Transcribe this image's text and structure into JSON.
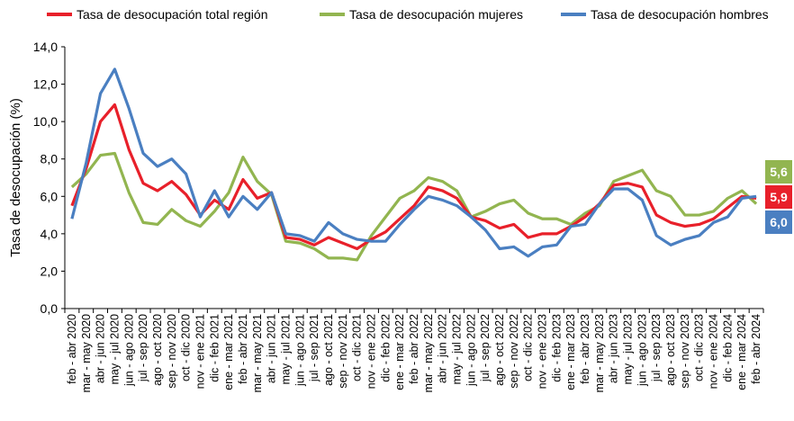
{
  "chart_data": {
    "type": "line",
    "y_label": "Tasa de desocupación (%)",
    "categories": [
      "feb - abr 2020",
      "mar - may 2020",
      "abr - jun 2020",
      "may - jul 2020",
      "jun - ago 2020",
      "jul - sep 2020",
      "ago - oct 2020",
      "sep - nov 2020",
      "oct - dic 2020",
      "nov - ene 2021",
      "dic - feb 2021",
      "ene - mar 2021",
      "feb - abr 2021",
      "mar - may 2021",
      "abr - jun 2021",
      "may - jul 2021",
      "jun - ago 2021",
      "jul - sep 2021",
      "ago - oct 2021",
      "sep - nov 2021",
      "oct - dic 2021",
      "nov - ene 2022",
      "dic - feb 2022",
      "ene - mar 2022",
      "feb - abr 2022",
      "mar - may 2022",
      "abr - jun 2022",
      "may - jul 2022",
      "jun - ago 2022",
      "jul - sep 2022",
      "ago - oct 2022",
      "sep - nov 2022",
      "oct - dic 2022",
      "nov - ene 2023",
      "dic - feb 2023",
      "ene - mar 2023",
      "feb - abr 2023",
      "mar - may 2023",
      "abr - jun 2023",
      "may - jul 2023",
      "jun - ago 2023",
      "jul - sep 2023",
      "ago - oct 2023",
      "sep - nov 2023",
      "oct - dic 2023",
      "nov - ene 2024",
      "dic - feb 2024",
      "ene - mar 2024",
      "feb - abr 2024"
    ],
    "series": [
      {
        "name": "Tasa de desocupación total región",
        "color": "#e8202a",
        "values": [
          5.5,
          7.5,
          10.0,
          10.9,
          8.5,
          6.7,
          6.3,
          6.8,
          6.1,
          5.0,
          5.8,
          5.3,
          6.9,
          5.9,
          6.2,
          3.8,
          3.7,
          3.4,
          3.8,
          3.5,
          3.2,
          3.7,
          4.1,
          4.8,
          5.5,
          6.5,
          6.3,
          5.9,
          4.9,
          4.7,
          4.3,
          4.5,
          3.8,
          4.0,
          4.0,
          4.4,
          4.9,
          5.6,
          6.6,
          6.7,
          6.5,
          5.0,
          4.6,
          4.4,
          4.5,
          4.8,
          5.4,
          6.0,
          5.9
        ],
        "value_labels": [
          null,
          null,
          null,
          null,
          null,
          null,
          null,
          null,
          null,
          null,
          null,
          null,
          null,
          null,
          null,
          null,
          null,
          null,
          null,
          null,
          null,
          null,
          null,
          null,
          null,
          null,
          null,
          null,
          null,
          null,
          null,
          null,
          null,
          null,
          null,
          null,
          null,
          null,
          null,
          null,
          null,
          null,
          null,
          null,
          null,
          null,
          null,
          null,
          "5,9"
        ]
      },
      {
        "name": "Tasa de desocupación mujeres",
        "color": "#92b550",
        "values": [
          6.5,
          7.2,
          8.2,
          8.3,
          6.2,
          4.6,
          4.5,
          5.3,
          4.7,
          4.4,
          5.2,
          6.2,
          8.1,
          6.8,
          6.1,
          3.6,
          3.5,
          3.2,
          2.7,
          2.7,
          2.6,
          3.9,
          4.9,
          5.9,
          6.3,
          7.0,
          6.8,
          6.3,
          4.9,
          5.2,
          5.6,
          5.8,
          5.1,
          4.8,
          4.8,
          4.5,
          5.1,
          5.5,
          6.8,
          7.1,
          7.4,
          6.3,
          6.0,
          5.0,
          5.0,
          5.2,
          5.9,
          6.3,
          5.6
        ],
        "value_labels": [
          null,
          null,
          null,
          null,
          null,
          null,
          null,
          null,
          null,
          null,
          null,
          null,
          null,
          null,
          null,
          null,
          null,
          null,
          null,
          null,
          null,
          null,
          null,
          null,
          null,
          null,
          null,
          null,
          null,
          null,
          null,
          null,
          null,
          null,
          null,
          null,
          null,
          null,
          null,
          null,
          null,
          null,
          null,
          null,
          null,
          null,
          null,
          null,
          "5,6"
        ]
      },
      {
        "name": "Tasa de desocupación hombres",
        "color": "#4a7fc1",
        "values": [
          4.8,
          7.8,
          11.5,
          12.8,
          10.7,
          8.3,
          7.6,
          8.0,
          7.2,
          4.9,
          6.3,
          4.9,
          6.0,
          5.3,
          6.2,
          4.0,
          3.9,
          3.6,
          4.6,
          4.0,
          3.7,
          3.6,
          3.6,
          4.5,
          5.3,
          6.0,
          5.8,
          5.5,
          4.9,
          4.2,
          3.2,
          3.3,
          2.8,
          3.3,
          3.4,
          4.4,
          4.5,
          5.6,
          6.4,
          6.4,
          5.8,
          3.9,
          3.4,
          3.7,
          3.9,
          4.6,
          4.9,
          5.9,
          6.0
        ],
        "value_labels": [
          null,
          null,
          null,
          null,
          null,
          null,
          null,
          null,
          null,
          null,
          null,
          null,
          null,
          null,
          null,
          null,
          null,
          null,
          null,
          null,
          null,
          null,
          null,
          null,
          null,
          null,
          null,
          null,
          null,
          null,
          null,
          null,
          null,
          null,
          null,
          null,
          null,
          null,
          null,
          null,
          null,
          null,
          null,
          null,
          null,
          null,
          null,
          null,
          "6,0"
        ]
      }
    ],
    "ylim": [
      0,
      14
    ],
    "yticks": [
      {
        "value": 0,
        "label": "0,0"
      },
      {
        "value": 2,
        "label": "2,0"
      },
      {
        "value": 4,
        "label": "4,0"
      },
      {
        "value": 6,
        "label": "6,0"
      },
      {
        "value": 8,
        "label": "8,0"
      },
      {
        "value": 10,
        "label": "10,0"
      },
      {
        "value": 12,
        "label": "12,0"
      },
      {
        "value": 14,
        "label": "14,0"
      }
    ],
    "grid": false,
    "legend": "top"
  }
}
